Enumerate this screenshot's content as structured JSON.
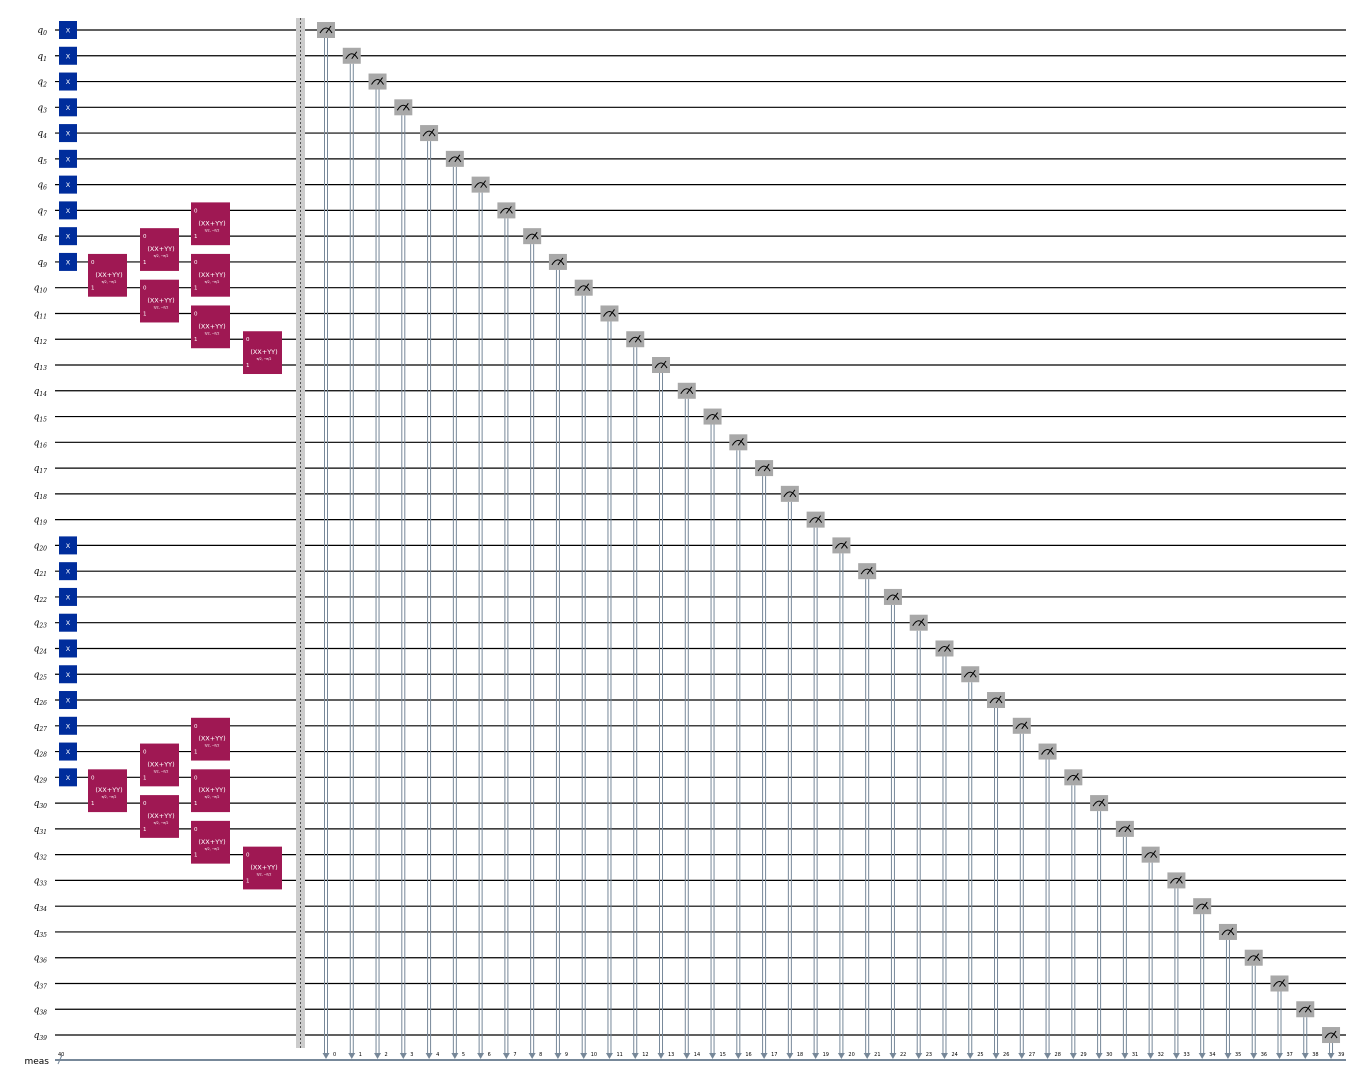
{
  "circuit": {
    "qubit_prefix": "q",
    "num_qubits": 40,
    "classical_register": {
      "label": "meas",
      "size_label": "40"
    },
    "colors": {
      "x_gate": "#002D9C",
      "xxyy_gate": "#9F1853",
      "measure": "#A8A8A8",
      "classical_wire": "#778899",
      "barrier": "#CCCCCC"
    },
    "x_gate": {
      "label": "X",
      "qubits": [
        0,
        1,
        2,
        3,
        4,
        5,
        6,
        7,
        8,
        9,
        20,
        21,
        22,
        23,
        24,
        25,
        26,
        27,
        28,
        29
      ]
    },
    "xxyy_gate": {
      "label": "(XX+YY)",
      "params": "π/2, −π/2",
      "port_labels": [
        "0",
        "1"
      ],
      "placements": [
        {
          "column": 0,
          "top_qubit": 9
        },
        {
          "column": 1,
          "top_qubit": 8
        },
        {
          "column": 1,
          "top_qubit": 10
        },
        {
          "column": 2,
          "top_qubit": 7
        },
        {
          "column": 2,
          "top_qubit": 9
        },
        {
          "column": 2,
          "top_qubit": 11
        },
        {
          "column": 3,
          "top_qubit": 12
        },
        {
          "column": 0,
          "top_qubit": 29
        },
        {
          "column": 1,
          "top_qubit": 28
        },
        {
          "column": 1,
          "top_qubit": 30
        },
        {
          "column": 2,
          "top_qubit": 27
        },
        {
          "column": 2,
          "top_qubit": 29
        },
        {
          "column": 2,
          "top_qubit": 31
        },
        {
          "column": 3,
          "top_qubit": 32
        }
      ]
    },
    "barrier": true,
    "measure_icon": "meter-icon",
    "measurements": "each qubit i measured into meas bit i"
  }
}
